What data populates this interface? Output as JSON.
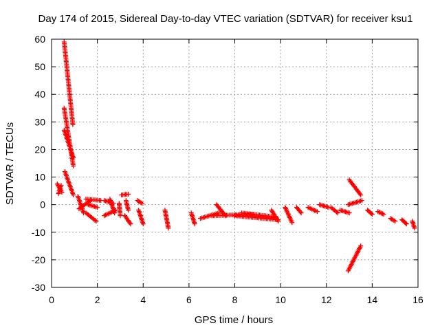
{
  "chart_data": {
    "type": "scatter",
    "title": "Day 174 of 2015, Sidereal Day-to-day VTEC variation (SDTVAR) for receiver ksu1",
    "xlabel": "GPS time / hours",
    "ylabel": "SDTVAR / TECUs",
    "xlim": [
      0,
      16
    ],
    "ylim": [
      -30,
      60
    ],
    "xticks": [
      0,
      2,
      4,
      6,
      8,
      10,
      12,
      14,
      16
    ],
    "yticks": [
      -30,
      -20,
      -10,
      0,
      10,
      20,
      30,
      40,
      50,
      60
    ],
    "grid": true,
    "marker": "plus",
    "series": [
      {
        "name": "ksu1",
        "color": "#ff0000",
        "segments": [
          {
            "x": [
              0.25,
              0.45
            ],
            "y": [
              7.5,
              4.5
            ]
          },
          {
            "x": [
              0.3,
              0.42
            ],
            "y": [
              4.0,
              7.0
            ]
          },
          {
            "x": [
              0.55,
              0.93
            ],
            "y": [
              59.0,
              29.0
            ]
          },
          {
            "x": [
              0.55,
              0.95
            ],
            "y": [
              35.0,
              14.0
            ]
          },
          {
            "x": [
              0.55,
              0.95
            ],
            "y": [
              27.0,
              17.0
            ]
          },
          {
            "x": [
              0.58,
              0.95
            ],
            "y": [
              12.0,
              3.5
            ]
          },
          {
            "x": [
              1.15,
              1.4
            ],
            "y": [
              3.0,
              -3.0
            ]
          },
          {
            "x": [
              1.2,
              1.7
            ],
            "y": [
              -1.5,
              1.5
            ]
          },
          {
            "x": [
              1.5,
              1.95
            ],
            "y": [
              -3.0,
              -6.0
            ]
          },
          {
            "x": [
              1.5,
              2.15
            ],
            "y": [
              2.0,
              1.5
            ]
          },
          {
            "x": [
              1.6,
              2.0
            ],
            "y": [
              0.0,
              -1.0
            ]
          },
          {
            "x": [
              2.3,
              2.8
            ],
            "y": [
              -4.0,
              -2.0
            ]
          },
          {
            "x": [
              2.3,
              2.7
            ],
            "y": [
              1.5,
              0.5
            ]
          },
          {
            "x": [
              2.55,
              2.75
            ],
            "y": [
              2.0,
              -3.0
            ]
          },
          {
            "x": [
              2.95,
              3.0
            ],
            "y": [
              0.5,
              -4.0
            ]
          },
          {
            "x": [
              3.05,
              3.35
            ],
            "y": [
              3.5,
              3.8
            ]
          },
          {
            "x": [
              3.25,
              3.35
            ],
            "y": [
              1.5,
              -2.0
            ]
          },
          {
            "x": [
              3.2,
              3.45
            ],
            "y": [
              -4.0,
              -7.0
            ]
          },
          {
            "x": [
              3.75,
              3.95
            ],
            "y": [
              1.5,
              0.5
            ]
          },
          {
            "x": [
              3.8,
              4.0
            ],
            "y": [
              -2.0,
              -7.0
            ]
          },
          {
            "x": [
              4.95,
              5.1
            ],
            "y": [
              -2.0,
              -8.5
            ]
          },
          {
            "x": [
              6.1,
              6.25
            ],
            "y": [
              -3.0,
              -7.0
            ]
          },
          {
            "x": [
              6.5,
              7.3
            ],
            "y": [
              -5.0,
              -3.0
            ]
          },
          {
            "x": [
              7.2,
              7.6
            ],
            "y": [
              0.0,
              -4.0
            ]
          },
          {
            "x": [
              7.0,
              8.8
            ],
            "y": [
              -4.0,
              -3.5
            ]
          },
          {
            "x": [
              8.0,
              9.9
            ],
            "y": [
              -4.0,
              -5.5
            ]
          },
          {
            "x": [
              8.3,
              9.8
            ],
            "y": [
              -3.0,
              -4.5
            ]
          },
          {
            "x": [
              9.6,
              9.9
            ],
            "y": [
              -2.0,
              -6.0
            ]
          },
          {
            "x": [
              10.2,
              10.5
            ],
            "y": [
              -1.0,
              -6.5
            ]
          },
          {
            "x": [
              10.7,
              10.9
            ],
            "y": [
              -1.0,
              -3.0
            ]
          },
          {
            "x": [
              11.2,
              11.6
            ],
            "y": [
              -1.0,
              -2.5
            ]
          },
          {
            "x": [
              11.7,
              12.1
            ],
            "y": [
              0.0,
              -1.0
            ]
          },
          {
            "x": [
              12.2,
              12.5
            ],
            "y": [
              -1.0,
              -3.0
            ]
          },
          {
            "x": [
              12.6,
              13.0
            ],
            "y": [
              -2.0,
              -3.0
            ]
          },
          {
            "x": [
              12.95,
              13.55
            ],
            "y": [
              0.0,
              1.5
            ]
          },
          {
            "x": [
              13.0,
              13.5
            ],
            "y": [
              9.0,
              3.5
            ]
          },
          {
            "x": [
              12.95,
              13.5
            ],
            "y": [
              -24.0,
              -15.0
            ]
          },
          {
            "x": [
              13.8,
              14.0
            ],
            "y": [
              -2.0,
              -3.5
            ]
          },
          {
            "x": [
              14.25,
              14.5
            ],
            "y": [
              -2.5,
              -3.5
            ]
          },
          {
            "x": [
              14.8,
              15.0
            ],
            "y": [
              -5.0,
              -6.0
            ]
          },
          {
            "x": [
              15.3,
              15.5
            ],
            "y": [
              -5.5,
              -7.0
            ]
          },
          {
            "x": [
              15.75,
              15.85
            ],
            "y": [
              -6.0,
              -8.5
            ]
          }
        ]
      }
    ]
  }
}
